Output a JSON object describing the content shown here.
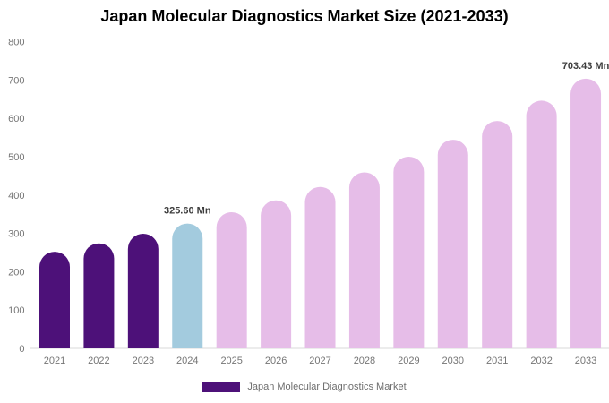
{
  "title": "Japan Molecular Diagnostics Market Size (2021-2033)",
  "legend": {
    "label": "Japan Molecular Diagnostics Market",
    "swatch_color": "#4D1179"
  },
  "chart_data": {
    "type": "bar",
    "title": "Japan Molecular Diagnostics Market Size (2021-2033)",
    "categories": [
      "2021",
      "2022",
      "2023",
      "2024",
      "2025",
      "2026",
      "2027",
      "2028",
      "2029",
      "2030",
      "2031",
      "2032",
      "2033"
    ],
    "values": [
      252,
      274,
      299,
      325.6,
      355,
      386,
      421,
      459,
      500,
      544,
      593,
      646,
      703.43
    ],
    "unit": "Mn",
    "bar_colors": [
      "#4D1179",
      "#4D1179",
      "#4D1179",
      "#A3CBDE",
      "#E6BDE8",
      "#E6BDE8",
      "#E6BDE8",
      "#E6BDE8",
      "#E6BDE8",
      "#E6BDE8",
      "#E6BDE8",
      "#E6BDE8",
      "#E6BDE8"
    ],
    "annotations": [
      {
        "category": "2024",
        "text": "325.60 Mn"
      },
      {
        "category": "2033",
        "text": "703.43 Mn"
      }
    ],
    "xlabel": "",
    "ylabel": "",
    "ylim": [
      0,
      800
    ],
    "yticks": [
      0,
      100,
      200,
      300,
      400,
      500,
      600,
      700,
      800
    ],
    "grid": false,
    "legend_position": "bottom",
    "axis_color": "#d9d9d9",
    "tick_label_color": "#757575",
    "annotation_color": "#3d3d3d"
  }
}
